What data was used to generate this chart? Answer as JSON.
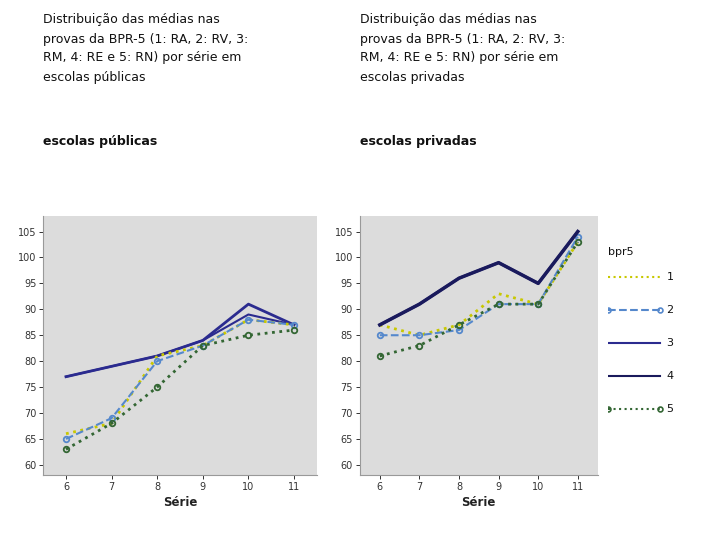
{
  "x": [
    6,
    7,
    8,
    9,
    10,
    11
  ],
  "title_left": "Distribuição das médias nas\nprovas da BPR-5 (1: RA, 2: RV, 3:\nRM, 4: RE e 5: RN) por série em\nescolas públicas",
  "title_right": "Distribuição das médias nas\nprovas da BPR-5 (1: RA, 2: RV, 3:\nRM, 4: RE e 5: RN) por série em\nescolas privadas",
  "xlabel": "Série",
  "legend_title": "bpr5",
  "legend_labels": [
    "1",
    "2",
    "3",
    "4",
    "5"
  ],
  "ylim": [
    58,
    108
  ],
  "yticks": [
    60,
    65,
    70,
    75,
    80,
    85,
    90,
    95,
    100,
    105
  ],
  "bg_color": "#dcdcdc",
  "fig_bg": "#ffffff",
  "publicas_lines": [
    {
      "y": [
        77,
        79,
        81,
        84,
        91,
        87
      ],
      "color": "#2b2b8f",
      "style": "-",
      "marker": null,
      "lw": 2.0,
      "ms": 0
    },
    {
      "y": [
        77,
        79,
        81,
        84,
        89,
        87
      ],
      "color": "#2b2b8f",
      "style": "-",
      "marker": null,
      "lw": 1.5,
      "ms": 0
    },
    {
      "y": [
        66,
        68,
        81,
        83,
        88,
        87
      ],
      "color": "#c8c800",
      "style": ":",
      "marker": null,
      "lw": 2.0,
      "ms": 0
    },
    {
      "y": [
        65,
        69,
        80,
        83,
        88,
        87
      ],
      "color": "#5588cc",
      "style": "--",
      "marker": "o",
      "lw": 1.5,
      "ms": 4
    },
    {
      "y": [
        63,
        68,
        75,
        83,
        85,
        86
      ],
      "color": "#336633",
      "style": ":",
      "marker": "o",
      "lw": 2.0,
      "ms": 4
    }
  ],
  "privadas_lines": [
    {
      "y": [
        87,
        85,
        87,
        93,
        91,
        103
      ],
      "color": "#c8c800",
      "style": ":",
      "marker": null,
      "lw": 2.0,
      "ms": 0
    },
    {
      "y": [
        85,
        85,
        86,
        91,
        91,
        104
      ],
      "color": "#5588cc",
      "style": "--",
      "marker": "o",
      "lw": 1.5,
      "ms": 4
    },
    {
      "y": [
        87,
        91,
        96,
        99,
        95,
        105
      ],
      "color": "#2b2b8f",
      "style": "-",
      "marker": null,
      "lw": 2.0,
      "ms": 0
    },
    {
      "y": [
        87,
        91,
        96,
        99,
        95,
        105
      ],
      "color": "#1a1a5c",
      "style": "-",
      "marker": null,
      "lw": 2.5,
      "ms": 0
    },
    {
      "y": [
        81,
        83,
        87,
        91,
        91,
        103
      ],
      "color": "#336633",
      "style": ":",
      "marker": "o",
      "lw": 2.0,
      "ms": 4
    }
  ],
  "legend_styles": [
    {
      "color": "#c8c800",
      "style": ":",
      "marker": null,
      "label": "1"
    },
    {
      "color": "#5588cc",
      "style": "--",
      "marker": "o",
      "label": "2"
    },
    {
      "color": "#2b2b8f",
      "style": "-",
      "marker": null,
      "label": "3"
    },
    {
      "color": "#1a1a5c",
      "style": "-",
      "marker": null,
      "label": "4"
    },
    {
      "color": "#336633",
      "style": ":",
      "marker": "o",
      "label": "5"
    }
  ]
}
